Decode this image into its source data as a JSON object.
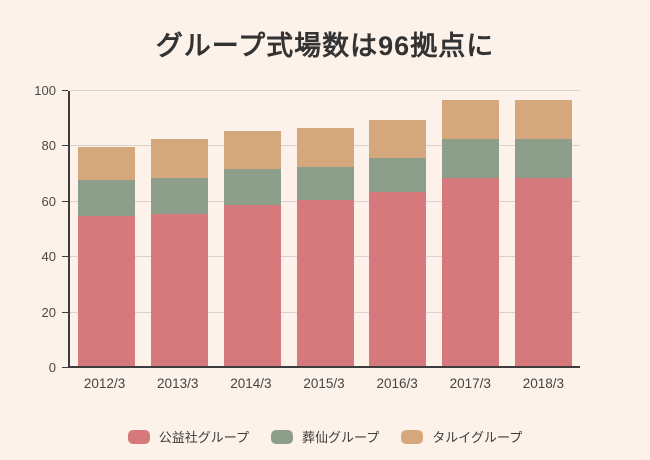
{
  "title": "グループ式場数は96拠点に",
  "chart_data": {
    "type": "bar",
    "stacked": true,
    "title": "グループ式場数は96拠点に",
    "categories": [
      "2012/3",
      "2013/3",
      "2014/3",
      "2015/3",
      "2016/3",
      "2017/3",
      "2018/3"
    ],
    "series": [
      {
        "name": "公益社グループ",
        "color": "#d5797c",
        "values": [
          54,
          55,
          58,
          60,
          63,
          68,
          68
        ]
      },
      {
        "name": "葬仙グループ",
        "color": "#8d9e8a",
        "values": [
          13,
          13,
          13,
          12,
          12,
          14,
          14
        ]
      },
      {
        "name": "タルイグループ",
        "color": "#d4a87c",
        "values": [
          12,
          14,
          14,
          14,
          14,
          14,
          14
        ]
      }
    ],
    "ylim": [
      0,
      100
    ],
    "yticks": [
      0,
      20,
      40,
      60,
      80,
      100
    ],
    "grid": true,
    "legend_position": "bottom",
    "colors": {
      "background": "#fdf2e9",
      "axis": "#3d3d3d",
      "gridline": "#dcd1ca",
      "title_text": "#333333",
      "tick_text": "#4a4a4a"
    }
  }
}
